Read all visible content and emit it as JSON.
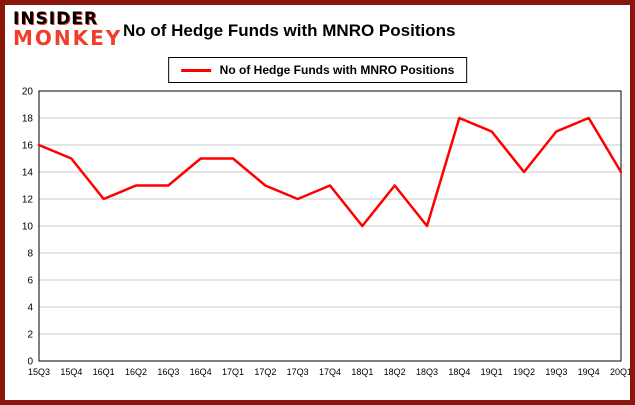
{
  "header": {
    "logo_line1": "INSIDER",
    "logo_line2": "MONKEY",
    "title": "No of Hedge Funds with MNRO Positions"
  },
  "legend": {
    "label": "No of Hedge Funds with MNRO Positions"
  },
  "colors": {
    "frame": "#8b160c",
    "line": "#fe0000",
    "grid": "#c8c8c8",
    "plot_border": "#000000",
    "logo_monkey": "#f03e2d"
  },
  "chart_data": {
    "type": "line",
    "title": "No of Hedge Funds with MNRO Positions",
    "categories": [
      "15Q3",
      "15Q4",
      "16Q1",
      "16Q2",
      "16Q3",
      "16Q4",
      "17Q1",
      "17Q2",
      "17Q3",
      "17Q4",
      "18Q1",
      "18Q2",
      "18Q3",
      "18Q4",
      "19Q1",
      "19Q2",
      "19Q3",
      "19Q4",
      "20Q1"
    ],
    "series": [
      {
        "name": "No of Hedge Funds with MNRO Positions",
        "color": "#fe0000",
        "values": [
          16,
          15,
          12,
          13,
          13,
          15,
          15,
          13,
          12,
          13,
          10,
          13,
          10,
          18,
          17,
          14,
          17,
          18,
          14
        ]
      }
    ],
    "xlabel": "",
    "ylabel": "",
    "ylim": [
      0,
      20
    ],
    "ytick_step": 2,
    "grid": true,
    "legend_position": "top"
  }
}
